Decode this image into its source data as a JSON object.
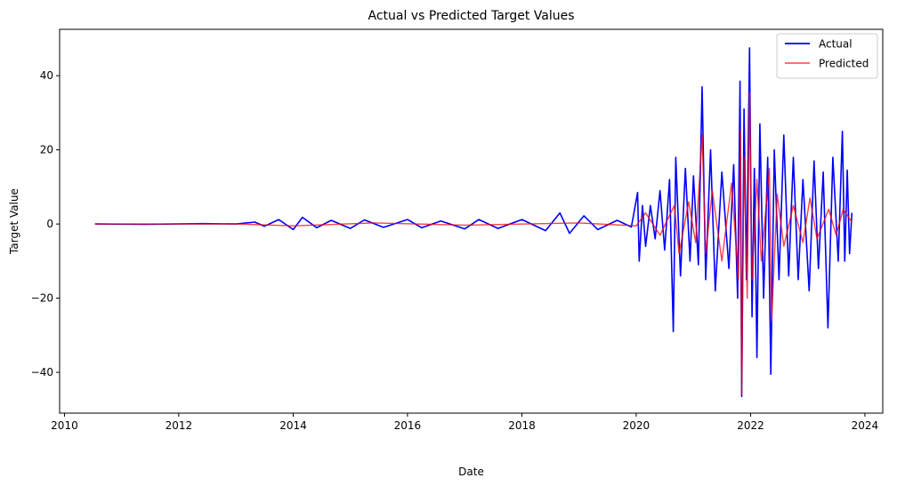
{
  "chart_data": {
    "type": "line",
    "title": "Actual vs Predicted Target Values",
    "xlabel": "Date",
    "ylabel": "Target Value",
    "xlim": [
      "2009-12-01",
      "2024-04-24"
    ],
    "ylim": [
      -51,
      52.5
    ],
    "x_ticks": [
      "2010",
      "2012",
      "2014",
      "2016",
      "2018",
      "2020",
      "2022",
      "2024"
    ],
    "y_ticks": [
      -40,
      -20,
      0,
      20,
      40
    ],
    "grid": false,
    "legend_position": "upper right",
    "series": [
      {
        "name": "Actual",
        "color": "#0000ff",
        "points": [
          [
            "2010-07-15",
            0.0
          ],
          [
            "2011-06-01",
            -0.1
          ],
          [
            "2012-06-01",
            0.1
          ],
          [
            "2013-01-01",
            0.0
          ],
          [
            "2013-05-01",
            0.5
          ],
          [
            "2013-07-01",
            -0.6
          ],
          [
            "2013-10-01",
            1.2
          ],
          [
            "2014-01-01",
            -1.5
          ],
          [
            "2014-03-01",
            1.8
          ],
          [
            "2014-06-01",
            -1.0
          ],
          [
            "2014-09-01",
            1.0
          ],
          [
            "2015-01-01",
            -1.2
          ],
          [
            "2015-04-01",
            1.1
          ],
          [
            "2015-08-01",
            -0.9
          ],
          [
            "2016-01-01",
            1.2
          ],
          [
            "2016-04-01",
            -1.0
          ],
          [
            "2016-08-01",
            0.8
          ],
          [
            "2017-01-01",
            -1.3
          ],
          [
            "2017-04-01",
            1.2
          ],
          [
            "2017-08-01",
            -1.2
          ],
          [
            "2018-01-01",
            1.2
          ],
          [
            "2018-06-01",
            -1.8
          ],
          [
            "2018-09-01",
            3.0
          ],
          [
            "2018-11-01",
            -2.5
          ],
          [
            "2019-02-01",
            2.2
          ],
          [
            "2019-05-01",
            -1.5
          ],
          [
            "2019-09-01",
            1.0
          ],
          [
            "2019-12-01",
            -0.8
          ],
          [
            "2020-01-10",
            8.5
          ],
          [
            "2020-01-20",
            -10.0
          ],
          [
            "2020-02-10",
            5.0
          ],
          [
            "2020-03-01",
            -6.0
          ],
          [
            "2020-04-01",
            5.0
          ],
          [
            "2020-05-01",
            -4.0
          ],
          [
            "2020-06-01",
            9.0
          ],
          [
            "2020-07-01",
            -7.0
          ],
          [
            "2020-08-01",
            12.0
          ],
          [
            "2020-08-25",
            -29.0
          ],
          [
            "2020-09-10",
            18.0
          ],
          [
            "2020-10-10",
            -14.0
          ],
          [
            "2020-11-10",
            15.0
          ],
          [
            "2020-12-10",
            -10.0
          ],
          [
            "2021-01-01",
            13.0
          ],
          [
            "2021-02-01",
            -11.0
          ],
          [
            "2021-02-25",
            37.0
          ],
          [
            "2021-03-20",
            -15.0
          ],
          [
            "2021-04-20",
            20.0
          ],
          [
            "2021-05-20",
            -18.0
          ],
          [
            "2021-07-01",
            14.0
          ],
          [
            "2021-08-15",
            -12.0
          ],
          [
            "2021-09-15",
            16.0
          ],
          [
            "2021-10-10",
            -20.0
          ],
          [
            "2021-10-25",
            38.5
          ],
          [
            "2021-11-05",
            -46.5
          ],
          [
            "2021-11-20",
            31.0
          ],
          [
            "2021-12-05",
            -15.0
          ],
          [
            "2021-12-25",
            47.5
          ],
          [
            "2022-01-10",
            -25.0
          ],
          [
            "2022-01-25",
            15.0
          ],
          [
            "2022-02-10",
            -36.0
          ],
          [
            "2022-03-01",
            27.0
          ],
          [
            "2022-03-25",
            -20.0
          ],
          [
            "2022-04-20",
            18.0
          ],
          [
            "2022-05-10",
            -40.5
          ],
          [
            "2022-06-01",
            20.0
          ],
          [
            "2022-07-01",
            -15.0
          ],
          [
            "2022-08-01",
            24.0
          ],
          [
            "2022-09-01",
            -14.0
          ],
          [
            "2022-10-01",
            18.0
          ],
          [
            "2022-11-01",
            -15.0
          ],
          [
            "2022-12-01",
            12.0
          ],
          [
            "2023-01-10",
            -18.0
          ],
          [
            "2023-02-10",
            17.0
          ],
          [
            "2023-03-10",
            -12.0
          ],
          [
            "2023-04-10",
            14.0
          ],
          [
            "2023-05-10",
            -28.0
          ],
          [
            "2023-06-10",
            18.0
          ],
          [
            "2023-07-15",
            -10.0
          ],
          [
            "2023-08-10",
            25.0
          ],
          [
            "2023-08-25",
            -10.0
          ],
          [
            "2023-09-10",
            14.5
          ],
          [
            "2023-09-25",
            -8.0
          ],
          [
            "2023-10-10",
            3.0
          ]
        ]
      },
      {
        "name": "Predicted",
        "color": "#ff0000",
        "points": [
          [
            "2010-07-15",
            0.0
          ],
          [
            "2013-01-01",
            0.0
          ],
          [
            "2014-01-01",
            -0.5
          ],
          [
            "2015-06-01",
            0.3
          ],
          [
            "2017-01-01",
            -0.3
          ],
          [
            "2019-01-01",
            0.3
          ],
          [
            "2020-01-01",
            -0.5
          ],
          [
            "2020-03-01",
            3.0
          ],
          [
            "2020-06-01",
            -3.0
          ],
          [
            "2020-09-01",
            5.0
          ],
          [
            "2020-10-01",
            -8.0
          ],
          [
            "2020-12-01",
            6.0
          ],
          [
            "2021-01-15",
            -5.0
          ],
          [
            "2021-02-25",
            24.0
          ],
          [
            "2021-03-20",
            -8.0
          ],
          [
            "2021-05-01",
            9.0
          ],
          [
            "2021-07-01",
            -10.0
          ],
          [
            "2021-09-01",
            11.0
          ],
          [
            "2021-10-15",
            -15.0
          ],
          [
            "2021-10-28",
            25.0
          ],
          [
            "2021-11-05",
            -46.0
          ],
          [
            "2021-11-20",
            18.0
          ],
          [
            "2021-12-10",
            -20.0
          ],
          [
            "2021-12-25",
            35.5
          ],
          [
            "2022-01-10",
            -15.0
          ],
          [
            "2022-02-10",
            12.0
          ],
          [
            "2022-03-10",
            -10.0
          ],
          [
            "2022-05-01",
            15.0
          ],
          [
            "2022-05-15",
            -26.0
          ],
          [
            "2022-06-20",
            8.0
          ],
          [
            "2022-08-01",
            -6.0
          ],
          [
            "2022-10-01",
            5.0
          ],
          [
            "2022-12-01",
            -5.0
          ],
          [
            "2023-01-15",
            7.0
          ],
          [
            "2023-03-01",
            -4.0
          ],
          [
            "2023-05-15",
            4.0
          ],
          [
            "2023-07-01",
            -3.0
          ],
          [
            "2023-08-15",
            4.0
          ],
          [
            "2023-10-10",
            0.5
          ]
        ]
      }
    ]
  }
}
